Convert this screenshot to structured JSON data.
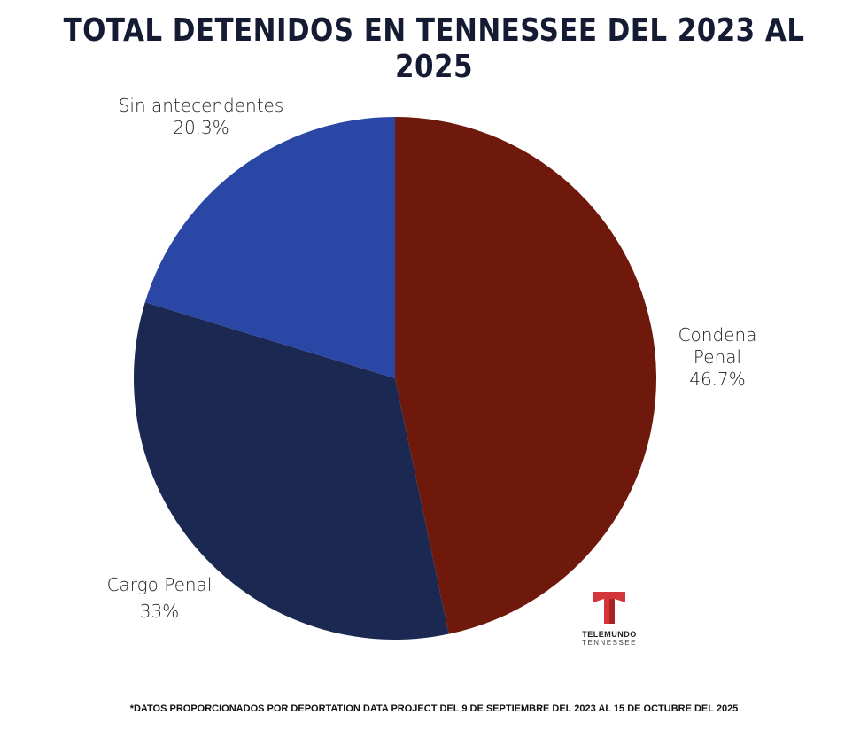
{
  "chart_data": {
    "type": "pie",
    "title": "TOTAL DETENIDOS EN TENNESSEE DEL 2023 AL 2025",
    "slices": [
      {
        "label": "Condena Penal",
        "value": 46.7,
        "value_label": "46.7%",
        "color": "#6e190c"
      },
      {
        "label": "Cargo Penal",
        "value": 33,
        "value_label": "33%",
        "color": "#1b2952"
      },
      {
        "label": "Sin antecendentes",
        "value": 20.3,
        "value_label": "20.3%",
        "color": "#2a47a6"
      }
    ],
    "start": "top",
    "direction": "clockwise"
  },
  "footnote": "*DATOS PROPORCIONADOS POR DEPORTATION DATA PROJECT DEL 9 DE SEPTIEMBRE DEL 2023 AL 15 DE OCTUBRE DEL 2025",
  "logo": {
    "line1": "TELEMUNDO",
    "line2": "TENNESSEE"
  }
}
